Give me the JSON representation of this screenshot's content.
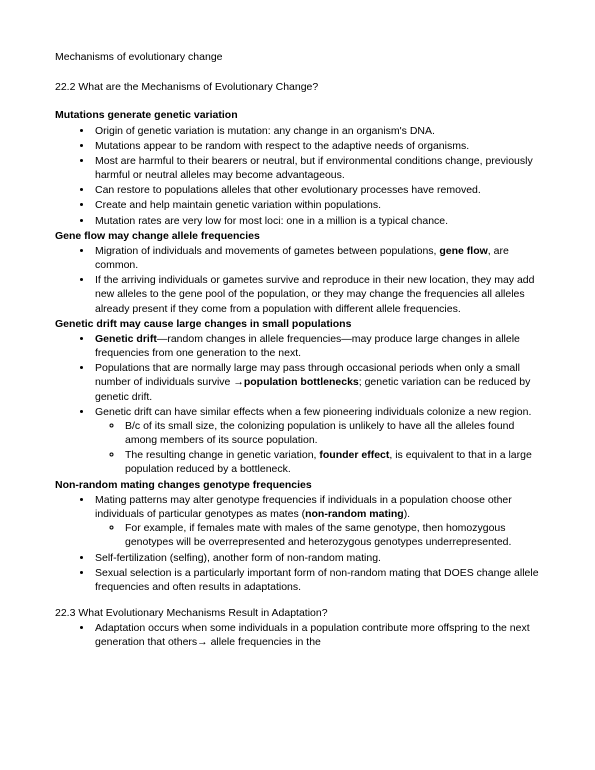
{
  "doc_title": "Mechanisms of evolutionary change",
  "s222_q": "22.2 What are the Mechanisms of Evolutionary Change?",
  "h_mut": "Mutations generate genetic variation",
  "mut": {
    "b1": "Origin of genetic variation is mutation: any change in an organism's DNA.",
    "b2": "Mutations appear to be random with respect to the adaptive needs of organisms.",
    "b3": "Most are harmful to their bearers or neutral, but if environmental conditions change, previously harmful or neutral alleles may become advantageous.",
    "b4": "Can restore to populations alleles that other evolutionary processes have removed.",
    "b5": "Create and help maintain genetic variation within populations.",
    "b6": "Mutation rates are very low for most loci: one in a million is a typical chance."
  },
  "h_gf": "Gene flow may change allele frequencies",
  "gf": {
    "b1a": "Migration of individuals and movements of gametes between populations, ",
    "b1b": "gene flow",
    "b1c": ", are common.",
    "b2": "If the arriving individuals or gametes survive and reproduce in their new location, they may add new alleles to the gene pool of the population, or they may change the frequencies all alleles already present if they come from a population with different allele frequencies."
  },
  "h_gd": "Genetic drift may cause large changes in small populations",
  "gd": {
    "b1a": "Genetic drift",
    "b1b": "—random changes in allele frequencies—may produce large changes in allele frequencies from one generation to the next.",
    "b2a": "Populations that are normally large may pass through occasional periods when only a small number of individuals survive ",
    "b2arrow": "→",
    "b2b": "population bottlenecks",
    "b2c": "; genetic variation can be reduced by genetic drift.",
    "b3": "Genetic drift can have similar effects when a few pioneering individuals colonize a new region.",
    "b3s1": "B/c of its small size, the colonizing population is unlikely to have all the alleles found among members of its source population.",
    "b3s2a": "The resulting change in genetic variation, ",
    "b3s2b": "founder effect",
    "b3s2c": ", is equivalent to that in a large population reduced by a bottleneck."
  },
  "h_nr": "Non-random mating changes genotype frequencies",
  "nr": {
    "b1a": "Mating patterns may alter genotype frequencies if individuals in a population choose other individuals of particular genotypes as mates (",
    "b1b": "non-random mating",
    "b1c": ").",
    "b1s1": "For example, if females mate with males of the same genotype, then homozygous genotypes will be overrepresented and heterozygous genotypes underrepresented.",
    "b2": "Self-fertilization (selfing), another form of non-random mating.",
    "b3": "Sexual selection is a particularly important form of non-random mating that DOES change allele frequencies and often results in adaptations."
  },
  "s223_q": "22.3 What Evolutionary Mechanisms Result in Adaptation?",
  "adapt": {
    "b1a": "Adaptation occurs when some individuals in a population contribute more offspring to the next generation that others",
    "b1arrow": "→",
    "b1b": " allele frequencies in the"
  },
  "colors": {
    "text": "#000000",
    "bg": "#ffffff"
  },
  "fonts": {
    "body_size_pt": 10.5,
    "line_height": 1.35,
    "family": "Verdana"
  }
}
